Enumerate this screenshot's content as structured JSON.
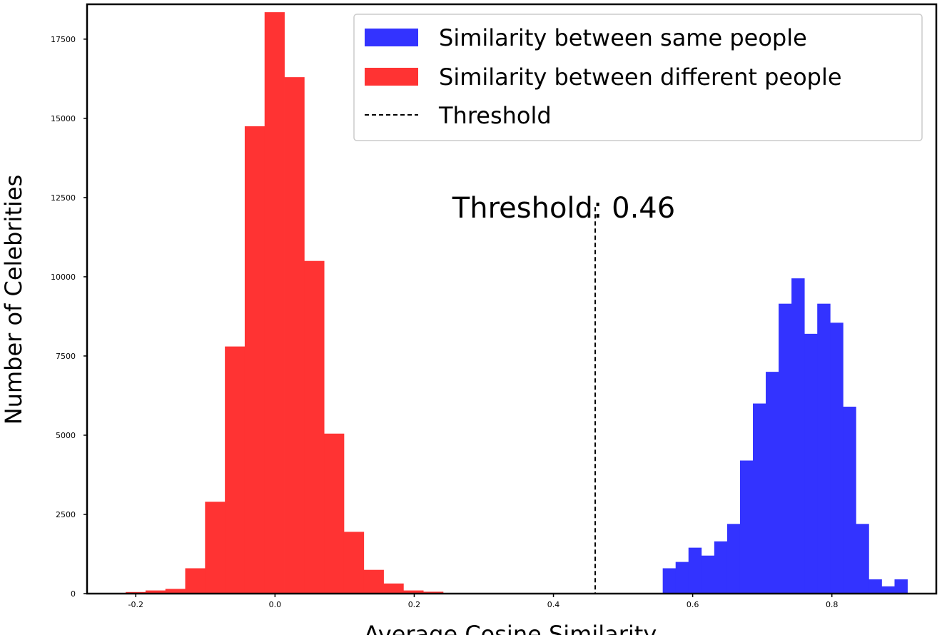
{
  "chart_data": {
    "type": "bar",
    "xlabel": "Average Cosine Similarity",
    "ylabel": "Number of Celebrities",
    "xlim": [
      -0.27,
      0.95
    ],
    "ylim": [
      0,
      18600
    ],
    "xticks": [
      -0.2,
      0.0,
      0.2,
      0.4,
      0.6,
      0.8
    ],
    "xtick_labels": [
      "-0.2",
      "0.0",
      "0.2",
      "0.4",
      "0.6",
      "0.8"
    ],
    "yticks": [
      0,
      2500,
      5000,
      7500,
      10000,
      12500,
      15000,
      17500
    ],
    "ytick_labels": [
      "0",
      "2500",
      "5000",
      "7500",
      "10000",
      "12500",
      "15000",
      "17500"
    ],
    "grid": false,
    "legend_position": "top-right",
    "series": [
      {
        "name": "Similarity between same people",
        "color": "#3333ff",
        "bin_width": 0.0185,
        "bins": [
          {
            "x0": 0.557,
            "value": 800
          },
          {
            "x0": 0.5755,
            "value": 1000
          },
          {
            "x0": 0.594,
            "value": 1450
          },
          {
            "x0": 0.6125,
            "value": 1200
          },
          {
            "x0": 0.631,
            "value": 1650
          },
          {
            "x0": 0.6495,
            "value": 2200
          },
          {
            "x0": 0.668,
            "value": 4200
          },
          {
            "x0": 0.6865,
            "value": 6000
          },
          {
            "x0": 0.705,
            "value": 7000
          },
          {
            "x0": 0.7235,
            "value": 9150
          },
          {
            "x0": 0.742,
            "value": 9950
          },
          {
            "x0": 0.7605,
            "value": 8200
          },
          {
            "x0": 0.779,
            "value": 9150
          },
          {
            "x0": 0.7975,
            "value": 8550
          },
          {
            "x0": 0.816,
            "value": 5900
          },
          {
            "x0": 0.8345,
            "value": 2200
          },
          {
            "x0": 0.853,
            "value": 450
          },
          {
            "x0": 0.8715,
            "value": 230
          },
          {
            "x0": 0.89,
            "value": 450
          }
        ]
      },
      {
        "name": "Similarity between different people",
        "color": "#ff3333",
        "bin_width": 0.0285,
        "bins": [
          {
            "x0": -0.2145,
            "value": 50
          },
          {
            "x0": -0.186,
            "value": 100
          },
          {
            "x0": -0.1575,
            "value": 150
          },
          {
            "x0": -0.129,
            "value": 800
          },
          {
            "x0": -0.1005,
            "value": 2900
          },
          {
            "x0": -0.072,
            "value": 7800
          },
          {
            "x0": -0.0435,
            "value": 14750
          },
          {
            "x0": -0.015,
            "value": 18350
          },
          {
            "x0": 0.0135,
            "value": 16300
          },
          {
            "x0": 0.042,
            "value": 10500
          },
          {
            "x0": 0.0705,
            "value": 5050
          },
          {
            "x0": 0.099,
            "value": 1950
          },
          {
            "x0": 0.1275,
            "value": 750
          },
          {
            "x0": 0.156,
            "value": 320
          },
          {
            "x0": 0.1845,
            "value": 100
          },
          {
            "x0": 0.213,
            "value": 60
          }
        ]
      }
    ],
    "threshold": {
      "legend_name": "Threshold",
      "value": 0.46,
      "line_top": 12200,
      "annotation": "Threshold: 0.46"
    }
  }
}
